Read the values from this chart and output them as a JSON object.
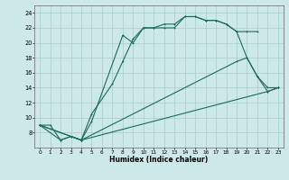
{
  "xlabel": "Humidex (Indice chaleur)",
  "bg_color": "#cce8e8",
  "grid_color": "#aacccc",
  "line_color": "#1a6b5a",
  "xlim": [
    -0.5,
    23.5
  ],
  "ylim": [
    6,
    25
  ],
  "xticks": [
    0,
    1,
    2,
    3,
    4,
    5,
    6,
    7,
    8,
    9,
    10,
    11,
    12,
    13,
    14,
    15,
    16,
    17,
    18,
    19,
    20,
    21,
    22,
    23
  ],
  "yticks": [
    8,
    10,
    12,
    14,
    16,
    18,
    20,
    22,
    24
  ],
  "line1_x": [
    0,
    1,
    2,
    3,
    4,
    5,
    7,
    8,
    9,
    10,
    11,
    12,
    13,
    14,
    15,
    16,
    17,
    18,
    19,
    20,
    21
  ],
  "line1_y": [
    9,
    9,
    7,
    7.5,
    7,
    10.5,
    14.5,
    17.5,
    20.5,
    22,
    22,
    22.5,
    22.5,
    23.5,
    23.5,
    23,
    23,
    22.5,
    21.5,
    21.5,
    21.5
  ],
  "line2_x": [
    0,
    2,
    3,
    4,
    5,
    8,
    9,
    10,
    11,
    12,
    13,
    14,
    15,
    16,
    17,
    18,
    19,
    20,
    21,
    22,
    23
  ],
  "line2_y": [
    9,
    7,
    7.5,
    7,
    9.5,
    21,
    20,
    22,
    22,
    22,
    22,
    23.5,
    23.5,
    23,
    23,
    22.5,
    21.5,
    18,
    15.5,
    14,
    14
  ],
  "line3_x": [
    0,
    4,
    19,
    20,
    21,
    22,
    23
  ],
  "line3_y": [
    9,
    7,
    17.5,
    18,
    15.5,
    13.5,
    14
  ],
  "line4_x": [
    0,
    4,
    22,
    23
  ],
  "line4_y": [
    9,
    7,
    13.5,
    14
  ]
}
